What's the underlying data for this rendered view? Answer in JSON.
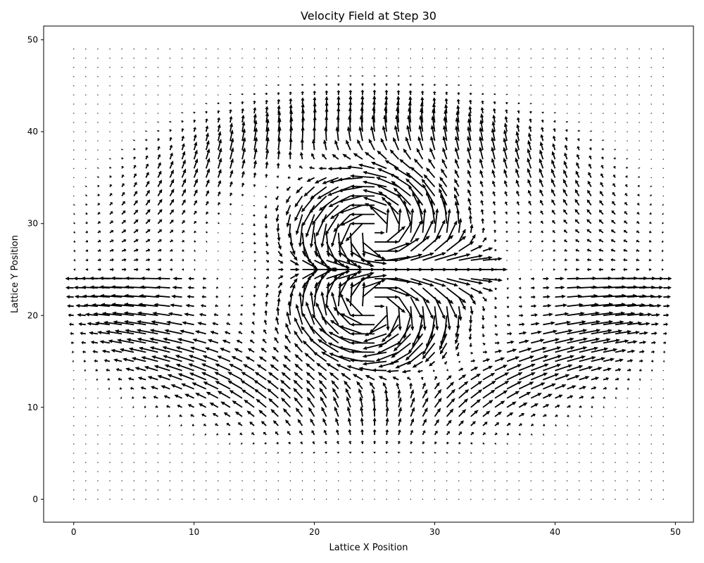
{
  "chart_data": {
    "type": "quiver",
    "title": "Velocity Field at Step 30",
    "xlabel": "Lattice X Position",
    "ylabel": "Lattice Y Position",
    "xlim": [
      -2.5,
      51.5
    ],
    "ylim": [
      -2.5,
      51.5
    ],
    "xticks": [
      0,
      10,
      20,
      30,
      40,
      50
    ],
    "yticks": [
      0,
      10,
      20,
      30,
      40,
      50
    ],
    "grid": {
      "x_start": 0,
      "x_end": 49,
      "y_start": 0,
      "y_end": 49,
      "step": 1
    },
    "arrow_color": "#000000",
    "field": {
      "description_source": "estimated from arrows in plot",
      "jet_center": [
        24.5,
        25
      ],
      "vortices": [
        {
          "x": 25,
          "y": 29,
          "sense": "ccw",
          "strength": 1.0
        },
        {
          "x": 25,
          "y": 21,
          "sense": "cw",
          "strength": 1.0
        }
      ],
      "outer_ring_radius_x": 21,
      "outer_ring_radius_y": 16,
      "max_speed": 1.0
    }
  }
}
